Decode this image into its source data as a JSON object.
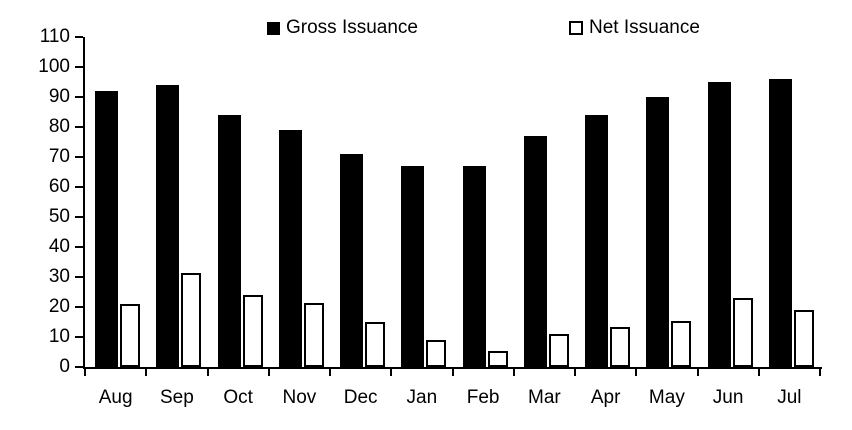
{
  "legend": {
    "gross": "Gross Issuance",
    "net": "Net Issuance"
  },
  "chart_data": {
    "type": "bar",
    "title": "",
    "xlabel": "",
    "ylabel": "",
    "categories": [
      "Aug",
      "Sep",
      "Oct",
      "Nov",
      "Dec",
      "Jan",
      "Feb",
      "Mar",
      "Apr",
      "May",
      "Jun",
      "Jul"
    ],
    "series": [
      {
        "name": "Gross Issuance",
        "fill": "#000000",
        "values": [
          92,
          94,
          84,
          79,
          71,
          67,
          67,
          77,
          84,
          90,
          95,
          96
        ]
      },
      {
        "name": "Net Issuance",
        "fill": "#ffffff",
        "values": [
          21,
          31.5,
          24,
          21.5,
          15,
          9,
          5.5,
          11,
          13.5,
          15.5,
          23,
          19
        ]
      }
    ],
    "ylim": [
      0,
      110
    ],
    "ytick_step": 10,
    "ytick_labels": [
      "0",
      "10",
      "20",
      "30",
      "40",
      "50",
      "60",
      "70",
      "80",
      "90",
      "100",
      "110"
    ],
    "grid": false,
    "legend_position": "top-center"
  },
  "colors": {
    "gross_bar": "#000000",
    "net_bar_fill": "#ffffff",
    "net_bar_border": "#000000",
    "axis": "#000000",
    "background": "#ffffff",
    "text": "#000000"
  }
}
